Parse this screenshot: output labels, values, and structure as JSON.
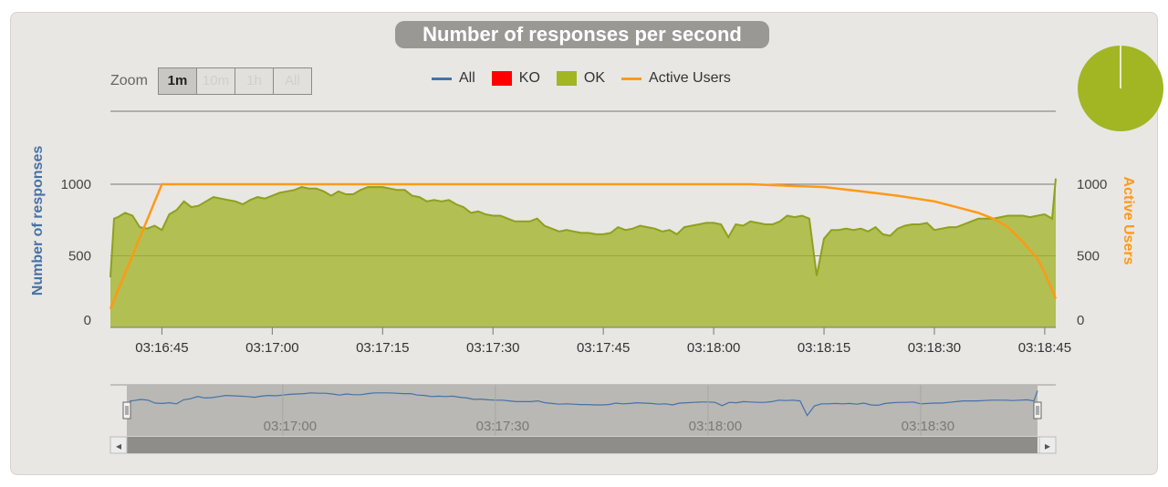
{
  "chart_data": {
    "type": "area",
    "title": "Number of responses per second",
    "ylabel": "Number of responses",
    "y2label": "Active Users",
    "ylim": [
      0,
      1000
    ],
    "y2lim": [
      0,
      1000
    ],
    "yticks": [
      "0",
      "500",
      "1000"
    ],
    "y2ticks": [
      "0",
      "500",
      "1000"
    ],
    "xlim_seconds": [
      38,
      150
    ],
    "xticks": [
      {
        "label": "03:16:45",
        "t": 45
      },
      {
        "label": "03:17:00",
        "t": 60
      },
      {
        "label": "03:17:15",
        "t": 75
      },
      {
        "label": "03:17:30",
        "t": 90
      },
      {
        "label": "03:17:45",
        "t": 105
      },
      {
        "label": "03:18:00",
        "t": 120
      },
      {
        "label": "03:18:15",
        "t": 135
      },
      {
        "label": "03:18:30",
        "t": 150
      },
      {
        "label": "03:18:45",
        "t": 165
      }
    ],
    "navigator_ticks": [
      {
        "label": "03:17:00",
        "t": 60
      },
      {
        "label": "03:17:30",
        "t": 90
      },
      {
        "label": "03:18:00",
        "t": 120
      },
      {
        "label": "03:18:30",
        "t": 150
      }
    ],
    "legend_position": "top-center",
    "grid": true,
    "series": [
      {
        "name": "OK",
        "color": "#a2b523",
        "x": [
          38,
          38.5,
          39,
          40,
          41,
          42,
          43,
          44,
          45,
          46,
          47,
          48,
          49,
          50,
          51,
          52,
          53,
          54,
          55,
          56,
          57,
          58,
          59,
          60,
          61,
          62,
          63,
          64,
          65,
          66,
          67,
          68,
          69,
          70,
          71,
          72,
          73,
          74,
          75,
          76,
          77,
          78,
          79,
          80,
          81,
          82,
          83,
          84,
          85,
          86,
          87,
          88,
          89,
          90,
          91,
          92,
          93,
          94,
          95,
          96,
          97,
          98,
          99,
          100,
          101,
          102,
          103,
          104,
          105,
          106,
          107,
          108,
          109,
          110,
          111,
          112,
          113,
          114,
          115,
          116,
          117,
          118,
          119,
          120,
          121,
          122,
          123,
          124,
          125,
          126,
          127,
          128,
          129,
          130,
          131,
          132,
          133,
          134,
          135,
          136,
          137,
          138,
          139,
          140,
          141,
          142,
          143,
          144,
          145,
          146,
          147,
          148,
          149,
          150,
          151,
          152,
          153,
          154,
          155,
          156,
          157,
          158,
          159,
          160,
          161,
          162,
          163,
          164,
          165,
          166,
          166.5
        ],
        "values": [
          350,
          760,
          770,
          800,
          780,
          700,
          690,
          710,
          680,
          790,
          820,
          880,
          840,
          850,
          880,
          910,
          900,
          890,
          880,
          860,
          890,
          910,
          900,
          920,
          940,
          950,
          960,
          980,
          970,
          970,
          950,
          920,
          950,
          930,
          930,
          960,
          980,
          980,
          980,
          970,
          960,
          960,
          920,
          910,
          880,
          890,
          880,
          890,
          860,
          840,
          800,
          810,
          790,
          780,
          780,
          760,
          740,
          740,
          740,
          760,
          710,
          690,
          670,
          680,
          670,
          660,
          660,
          650,
          650,
          660,
          700,
          680,
          690,
          710,
          700,
          690,
          670,
          680,
          650,
          700,
          710,
          720,
          730,
          730,
          720,
          630,
          720,
          710,
          740,
          730,
          720,
          720,
          740,
          780,
          770,
          780,
          760,
          360,
          620,
          680,
          680,
          690,
          680,
          690,
          670,
          700,
          650,
          640,
          690,
          710,
          720,
          720,
          730,
          680,
          690,
          700,
          700,
          720,
          740,
          760,
          760,
          760,
          770,
          780,
          780,
          780,
          770,
          780,
          790,
          760,
          1040
        ]
      },
      {
        "name": "Active Users",
        "color": "#ff9916",
        "x": [
          38,
          45,
          110,
          115,
          120,
          125,
          130,
          135,
          140,
          145,
          150,
          153,
          156,
          158,
          160,
          162,
          164,
          165,
          166,
          166.5
        ],
        "values": [
          130,
          1000,
          1000,
          1000,
          1000,
          1000,
          990,
          980,
          950,
          920,
          880,
          840,
          800,
          760,
          700,
          600,
          480,
          380,
          260,
          200
        ]
      }
    ]
  },
  "legend": {
    "all": "All",
    "ko": "KO",
    "ok": "OK",
    "active_users": "Active Users"
  },
  "zoom": {
    "label": "Zoom",
    "buttons": [
      "1m",
      "10m",
      "1h",
      "All"
    ],
    "selected": "1m"
  },
  "colors": {
    "all": "#4572a7",
    "ko": "#ff0000",
    "ok": "#a2b523",
    "active_users": "#ff9916",
    "ylabel": "#4572a7"
  },
  "pie": {
    "ok_fraction": 1.0,
    "ko_fraction": 0.0
  },
  "navigator": {
    "scroll_left": "◂",
    "scroll_right": "▸"
  }
}
